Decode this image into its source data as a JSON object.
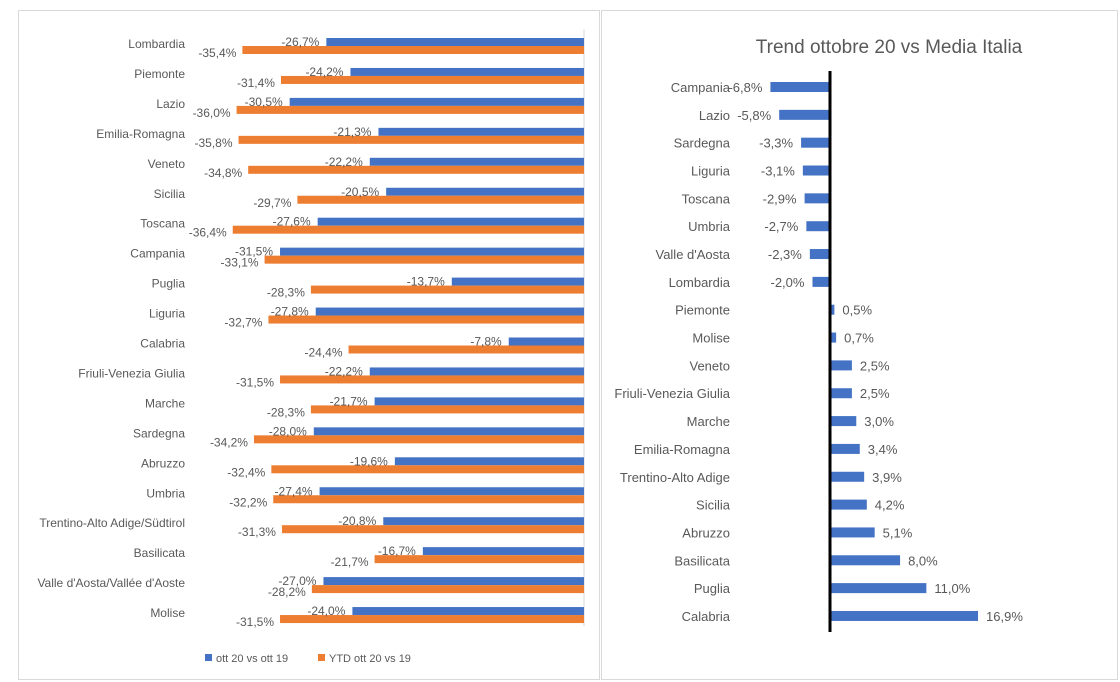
{
  "colors": {
    "blue": "#4472c4",
    "orange": "#ed7d31",
    "axis_right": "#000000",
    "axis_left": "#d9d9d9"
  },
  "chart_data": [
    {
      "type": "bar",
      "orientation": "horizontal",
      "title": "",
      "categories": [
        "Lombardia",
        "Piemonte",
        "Lazio",
        "Emilia-Romagna",
        "Veneto",
        "Sicilia",
        "Toscana",
        "Campania",
        "Puglia",
        "Liguria",
        "Calabria",
        "Friuli-Venezia Giulia",
        "Marche",
        "Sardegna",
        "Abruzzo",
        "Umbria",
        "Trentino-Alto Adige/Südtirol",
        "Basilicata",
        "Valle d'Aosta/Vallée d'Aoste",
        "Molise"
      ],
      "series": [
        {
          "name": "ott 20 vs ott 19",
          "color": "#4472c4",
          "values": [
            -26.7,
            -24.2,
            -30.5,
            -21.3,
            -22.2,
            -20.5,
            -27.6,
            -31.5,
            -13.7,
            -27.8,
            -7.8,
            -22.2,
            -21.7,
            -28.0,
            -19.6,
            -27.4,
            -20.8,
            -16.7,
            -27.0,
            -24.0
          ],
          "labels": [
            "-26,7%",
            "-24,2%",
            "-30,5%",
            "-21,3%",
            "-22,2%",
            "-20,5%",
            "-27,6%",
            "-31,5%",
            "-13,7%",
            "-27,8%",
            "-7,8%",
            "-22,2%",
            "-21,7%",
            "-28,0%",
            "-19,6%",
            "-27,4%",
            "-20,8%",
            "-16,7%",
            "-27,0%",
            "-24,0%"
          ]
        },
        {
          "name": "YTD ott 20 vs 19",
          "color": "#ed7d31",
          "values": [
            -35.4,
            -31.4,
            -36.0,
            -35.8,
            -34.8,
            -29.7,
            -36.4,
            -33.1,
            -28.3,
            -32.7,
            -24.4,
            -31.5,
            -28.3,
            -34.2,
            -32.4,
            -32.2,
            -31.3,
            -21.7,
            -28.2,
            -31.5
          ],
          "labels": [
            "-35,4%",
            "-31,4%",
            "-36,0%",
            "-35,8%",
            "-34,8%",
            "-29,7%",
            "-36,4%",
            "-33,1%",
            "-28,3%",
            "-32,7%",
            "-24,4%",
            "-31,5%",
            "-28,3%",
            "-34,2%",
            "-32,4%",
            "-32,2%",
            "-31,3%",
            "-21,7%",
            "-28,2%",
            "-31,5%"
          ]
        }
      ],
      "legend": "bottom",
      "grid": false
    },
    {
      "type": "bar",
      "orientation": "horizontal",
      "title": "Trend ottobre 20 vs Media Italia",
      "categories": [
        "Campania",
        "Lazio",
        "Sardegna",
        "Liguria",
        "Toscana",
        "Umbria",
        "Valle d'Aosta",
        "Lombardia",
        "Piemonte",
        "Molise",
        "Veneto",
        "Friuli-Venezia Giulia",
        "Marche",
        "Emilia-Romagna",
        "Trentino-Alto Adige",
        "Sicilia",
        "Abruzzo",
        "Basilicata",
        "Puglia",
        "Calabria"
      ],
      "series": [
        {
          "color": "#4472c4",
          "values": [
            -6.8,
            -5.8,
            -3.3,
            -3.1,
            -2.9,
            -2.7,
            -2.3,
            -2.0,
            0.5,
            0.7,
            2.5,
            2.5,
            3.0,
            3.4,
            3.9,
            4.2,
            5.1,
            8.0,
            11.0,
            16.9
          ],
          "labels": [
            "-6,8%",
            "-5,8%",
            "-3,3%",
            "-3,1%",
            "-2,9%",
            "-2,7%",
            "-2,3%",
            "-2,0%",
            "0,5%",
            "0,7%",
            "2,5%",
            "2,5%",
            "3,0%",
            "3,4%",
            "3,9%",
            "4,2%",
            "5,1%",
            "8,0%",
            "11,0%",
            "16,9%"
          ]
        }
      ],
      "legend": "none",
      "grid": false
    }
  ]
}
